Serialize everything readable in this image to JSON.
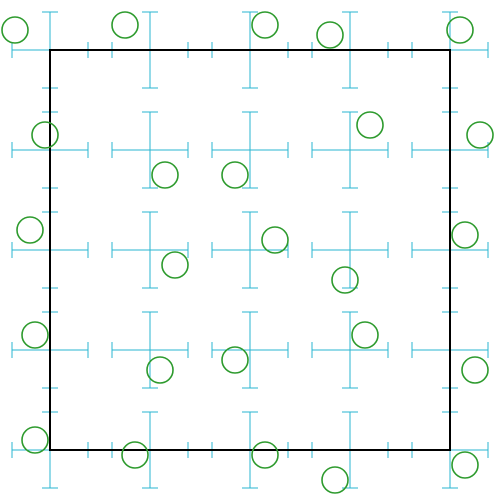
{
  "colors": {
    "background": "#ffffff",
    "frame": "#000000",
    "grid_marker": "#29b6d1",
    "circle": "#2e9b2e"
  },
  "frame": {
    "x_range": [
      0,
      4
    ],
    "y_range": [
      0,
      4
    ]
  },
  "grid_markers": {
    "x": [
      0,
      1,
      2,
      3,
      4
    ],
    "y": [
      0,
      1,
      2,
      3,
      4
    ],
    "cap": "double-tick"
  },
  "circles": [
    [
      -0.35,
      4.2
    ],
    [
      -0.05,
      3.15
    ],
    [
      -0.2,
      2.2
    ],
    [
      -0.15,
      1.15
    ],
    [
      -0.15,
      0.1
    ],
    [
      0.75,
      4.25
    ],
    [
      1.15,
      2.75
    ],
    [
      1.25,
      1.85
    ],
    [
      1.1,
      0.8
    ],
    [
      0.85,
      -0.05
    ],
    [
      2.15,
      4.25
    ],
    [
      1.85,
      2.75
    ],
    [
      2.25,
      2.1
    ],
    [
      1.85,
      0.9
    ],
    [
      2.15,
      -0.05
    ],
    [
      2.8,
      4.15
    ],
    [
      3.2,
      3.25
    ],
    [
      2.95,
      1.7
    ],
    [
      3.15,
      1.15
    ],
    [
      2.85,
      -0.3
    ],
    [
      4.1,
      4.2
    ],
    [
      4.3,
      3.15
    ],
    [
      4.15,
      2.15
    ],
    [
      4.25,
      0.8
    ],
    [
      4.15,
      -0.15
    ]
  ]
}
